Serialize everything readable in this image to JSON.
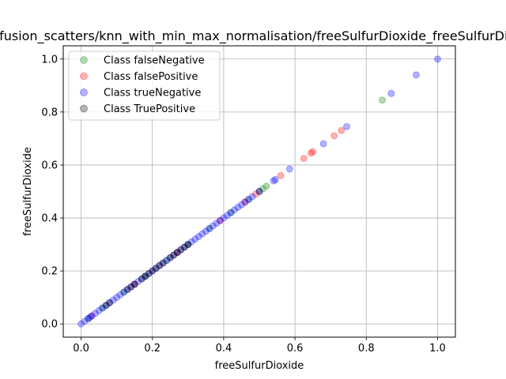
{
  "chart_data": {
    "type": "scatter",
    "title": "confusion_scatters/knn_with_min_max_normalisation/freeSulfurDioxide_freeSulfurDioxide",
    "xlabel": "freeSulfurDioxide",
    "ylabel": "freeSulfurDioxide",
    "xlim": [
      -0.05,
      1.05
    ],
    "ylim": [
      -0.05,
      1.05
    ],
    "xticks": [
      "0.0",
      "0.2",
      "0.4",
      "0.6",
      "0.8",
      "1.0"
    ],
    "yticks": [
      "0.0",
      "0.2",
      "0.4",
      "0.6",
      "0.8",
      "1.0"
    ],
    "grid": true,
    "legend_position": "upper-left",
    "series": [
      {
        "name": "Class falseNegative",
        "color": "#008000",
        "points": [
          [
            0.02,
            0.02
          ],
          [
            0.06,
            0.06
          ],
          [
            0.12,
            0.12
          ],
          [
            0.18,
            0.18
          ],
          [
            0.24,
            0.24
          ],
          [
            0.3,
            0.3
          ],
          [
            0.36,
            0.36
          ],
          [
            0.42,
            0.42
          ],
          [
            0.47,
            0.47
          ],
          [
            0.51,
            0.51
          ],
          [
            0.52,
            0.52
          ],
          [
            0.845,
            0.845
          ]
        ]
      },
      {
        "name": "Class falsePositive",
        "color": "#ff0000",
        "points": [
          [
            0.03,
            0.03
          ],
          [
            0.15,
            0.15
          ],
          [
            0.27,
            0.27
          ],
          [
            0.39,
            0.39
          ],
          [
            0.46,
            0.46
          ],
          [
            0.49,
            0.49
          ],
          [
            0.56,
            0.56
          ],
          [
            0.625,
            0.625
          ],
          [
            0.645,
            0.645
          ],
          [
            0.65,
            0.65
          ],
          [
            0.71,
            0.71
          ],
          [
            0.73,
            0.73
          ]
        ]
      },
      {
        "name": "Class trueNegative",
        "color": "#0000ff",
        "points": [
          [
            0.0,
            0.0
          ],
          [
            0.01,
            0.01
          ],
          [
            0.02,
            0.02
          ],
          [
            0.025,
            0.025
          ],
          [
            0.03,
            0.03
          ],
          [
            0.04,
            0.04
          ],
          [
            0.05,
            0.05
          ],
          [
            0.06,
            0.06
          ],
          [
            0.07,
            0.07
          ],
          [
            0.08,
            0.08
          ],
          [
            0.09,
            0.09
          ],
          [
            0.1,
            0.1
          ],
          [
            0.11,
            0.11
          ],
          [
            0.12,
            0.12
          ],
          [
            0.13,
            0.13
          ],
          [
            0.14,
            0.14
          ],
          [
            0.15,
            0.15
          ],
          [
            0.16,
            0.16
          ],
          [
            0.17,
            0.17
          ],
          [
            0.18,
            0.18
          ],
          [
            0.19,
            0.19
          ],
          [
            0.2,
            0.2
          ],
          [
            0.21,
            0.21
          ],
          [
            0.22,
            0.22
          ],
          [
            0.23,
            0.23
          ],
          [
            0.24,
            0.24
          ],
          [
            0.25,
            0.25
          ],
          [
            0.26,
            0.26
          ],
          [
            0.27,
            0.27
          ],
          [
            0.28,
            0.28
          ],
          [
            0.29,
            0.29
          ],
          [
            0.3,
            0.3
          ],
          [
            0.31,
            0.31
          ],
          [
            0.32,
            0.32
          ],
          [
            0.33,
            0.33
          ],
          [
            0.34,
            0.34
          ],
          [
            0.35,
            0.35
          ],
          [
            0.36,
            0.36
          ],
          [
            0.37,
            0.37
          ],
          [
            0.38,
            0.38
          ],
          [
            0.39,
            0.39
          ],
          [
            0.4,
            0.4
          ],
          [
            0.41,
            0.41
          ],
          [
            0.42,
            0.42
          ],
          [
            0.43,
            0.43
          ],
          [
            0.44,
            0.44
          ],
          [
            0.45,
            0.45
          ],
          [
            0.46,
            0.46
          ],
          [
            0.47,
            0.47
          ],
          [
            0.48,
            0.48
          ],
          [
            0.5,
            0.5
          ],
          [
            0.54,
            0.54
          ],
          [
            0.545,
            0.545
          ],
          [
            0.585,
            0.585
          ],
          [
            0.68,
            0.68
          ],
          [
            0.745,
            0.745
          ],
          [
            0.87,
            0.87
          ],
          [
            0.94,
            0.94
          ],
          [
            1.0,
            1.0
          ]
        ]
      },
      {
        "name": "Class TruePositive",
        "color": "#000000",
        "points": [
          [
            0.07,
            0.07
          ],
          [
            0.08,
            0.08
          ],
          [
            0.13,
            0.13
          ],
          [
            0.14,
            0.14
          ],
          [
            0.15,
            0.15
          ],
          [
            0.17,
            0.17
          ],
          [
            0.18,
            0.18
          ],
          [
            0.19,
            0.19
          ],
          [
            0.2,
            0.2
          ],
          [
            0.21,
            0.21
          ],
          [
            0.22,
            0.22
          ],
          [
            0.23,
            0.23
          ],
          [
            0.25,
            0.25
          ],
          [
            0.26,
            0.26
          ],
          [
            0.27,
            0.27
          ],
          [
            0.28,
            0.28
          ],
          [
            0.29,
            0.29
          ],
          [
            0.3,
            0.3
          ],
          [
            0.5,
            0.5
          ]
        ]
      }
    ]
  }
}
